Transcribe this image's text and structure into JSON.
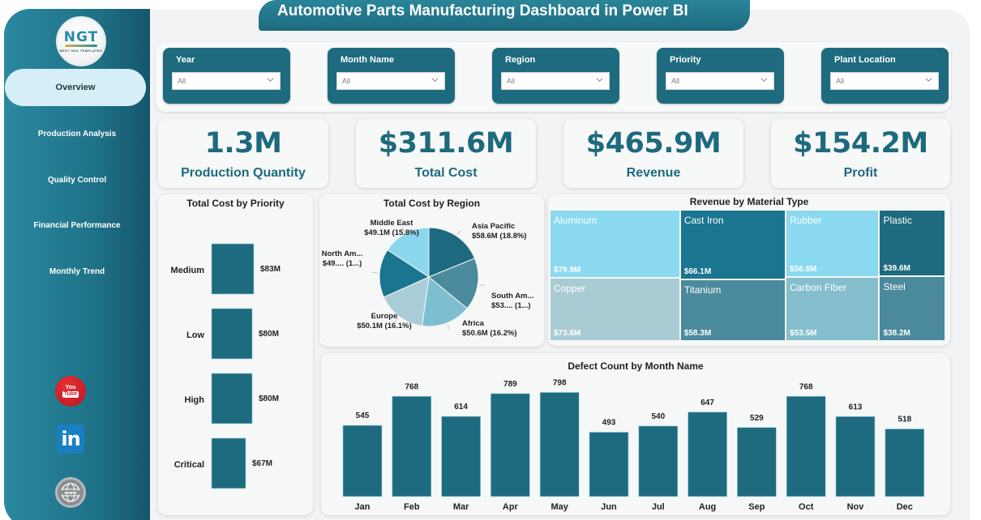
{
  "app": {
    "title": "Automotive Parts Manufacturing Dashboard in Power BI"
  },
  "logo": {
    "text": "NGT",
    "tagline": "BEST SEO TEMPLATES"
  },
  "sidebar": {
    "items": [
      {
        "label": "Overview",
        "active": true
      },
      {
        "label": "Production Analysis",
        "active": false
      },
      {
        "label": "Quality Control",
        "active": false
      },
      {
        "label": "Financial Performance",
        "active": false
      },
      {
        "label": "Monthly Trend",
        "active": false
      }
    ],
    "social": [
      {
        "name": "youtube-icon",
        "label_top": "You",
        "label_bottom": "Tube"
      },
      {
        "name": "linkedin-icon",
        "label": "in"
      },
      {
        "name": "website-icon",
        "label": "www"
      }
    ]
  },
  "filters": [
    {
      "label": "Year",
      "value": "All"
    },
    {
      "label": "Month Name",
      "value": "All"
    },
    {
      "label": "Region",
      "value": "All"
    },
    {
      "label": "Priority",
      "value": "All"
    },
    {
      "label": "Plant Location",
      "value": "All"
    }
  ],
  "kpis": [
    {
      "value": "1.3M",
      "label": "Production Quantity"
    },
    {
      "value": "$311.6M",
      "label": "Total Cost"
    },
    {
      "value": "$465.9M",
      "label": "Revenue"
    },
    {
      "value": "$154.2M",
      "label": "Profit"
    }
  ],
  "colors": {
    "primary": "#1e6b7f",
    "kpi_text": "#1d6a7e",
    "nav_active_bg": "#d6eff7",
    "canvas_bg": "#f1f3f4"
  },
  "chart_data": [
    {
      "type": "bar",
      "orientation": "horizontal",
      "title": "Total Cost by Priority",
      "categories": [
        "Medium",
        "Low",
        "High",
        "Critical"
      ],
      "values": [
        83,
        80,
        80,
        67
      ],
      "data_labels": [
        "$83M",
        "$80M",
        "$80M",
        "$67M"
      ],
      "unit": "$M",
      "color": "#1e6b7f"
    },
    {
      "type": "pie",
      "title": "Total Cost by Region",
      "slices": [
        {
          "label": "Asia Pacific",
          "value": 58.6,
          "data_label": "$58.6M (18.8%)",
          "color": "#1d6a80"
        },
        {
          "label": "South America",
          "display_label": "South Am...",
          "value": 53.2,
          "data_label": "$53.... (1...)",
          "color": "#4a8a9c"
        },
        {
          "label": "Africa",
          "value": 50.6,
          "data_label": "$50.6M (16.2%)",
          "color": "#7dbfd0"
        },
        {
          "label": "Europe",
          "value": 50.1,
          "data_label": "$50.1M (16.1%)",
          "color": "#a8cdd6"
        },
        {
          "label": "North America",
          "display_label": "North Am...",
          "value": 49.4,
          "data_label": "$49.... (1...)",
          "color": "#1a7590"
        },
        {
          "label": "Middle East",
          "value": 49.1,
          "data_label": "$49.1M (15.8%)",
          "color": "#8ad7ed"
        }
      ]
    },
    {
      "type": "treemap",
      "title": "Revenue by Material Type",
      "items": [
        {
          "label": "Aluminum",
          "value": 79.9,
          "data_label": "$79.9M",
          "color": "#8ad9ee"
        },
        {
          "label": "Copper",
          "value": 73.6,
          "data_label": "$73.6M",
          "color": "#a9cbd4"
        },
        {
          "label": "Cast Iron",
          "value": 66.1,
          "data_label": "$66.1M",
          "color": "#1a7590"
        },
        {
          "label": "Titanium",
          "value": 58.3,
          "data_label": "$58.3M",
          "color": "#4a8a9c"
        },
        {
          "label": "Rubber",
          "value": 56.6,
          "data_label": "$56.6M",
          "color": "#8ad9ee"
        },
        {
          "label": "Carbon Fiber",
          "value": 53.5,
          "data_label": "$53.5M",
          "color": "#85bfce"
        },
        {
          "label": "Plastic",
          "value": 39.6,
          "data_label": "$39.6M",
          "color": "#1e6b7f"
        },
        {
          "label": "Steel",
          "value": 38.2,
          "data_label": "$38.2M",
          "color": "#4a8a9c"
        }
      ]
    },
    {
      "type": "bar",
      "orientation": "vertical",
      "title": "Defect Count by Month Name",
      "categories": [
        "Jan",
        "Feb",
        "Mar",
        "Apr",
        "May",
        "Jun",
        "Jul",
        "Aug",
        "Sep",
        "Oct",
        "Nov",
        "Dec"
      ],
      "values": [
        545,
        768,
        614,
        789,
        798,
        493,
        540,
        647,
        529,
        768,
        613,
        518
      ],
      "color": "#1e6b7f"
    }
  ]
}
